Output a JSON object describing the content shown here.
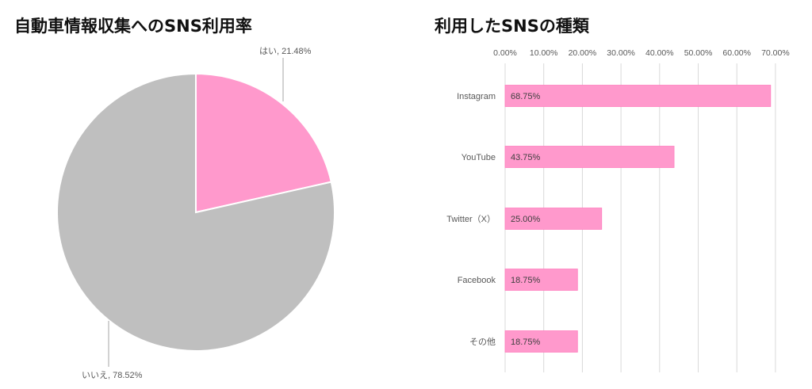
{
  "chart_data": [
    {
      "type": "pie",
      "title": "自動車情報収集へのSNS利用率",
      "slices": [
        {
          "label": "はい",
          "value": 21.48,
          "data_label": "はい, 21.48%"
        },
        {
          "label": "いいえ",
          "value": 78.52,
          "data_label": "いいえ, 78.52%"
        }
      ],
      "colors": [
        "#ff99cc",
        "#bfbfbf"
      ],
      "legend": "none"
    },
    {
      "type": "bar",
      "orientation": "horizontal",
      "title": "利用したSNSの種類",
      "categories": [
        "Instagram",
        "YouTube",
        "Twitter（X）",
        "Facebook",
        "その他"
      ],
      "values": [
        68.75,
        43.75,
        25.0,
        18.75,
        18.75
      ],
      "data_labels": [
        "68.75%",
        "43.75%",
        "25.00%",
        "18.75%",
        "18.75%"
      ],
      "xlim": [
        0,
        70
      ],
      "x_ticks": [
        "0.00%",
        "10.00%",
        "20.00%",
        "30.00%",
        "40.00%",
        "50.00%",
        "60.00%",
        "70.00%"
      ],
      "x_axis_position": "top",
      "grid": true,
      "bar_color": "#ff99cc",
      "xlabel": "",
      "ylabel": ""
    }
  ]
}
